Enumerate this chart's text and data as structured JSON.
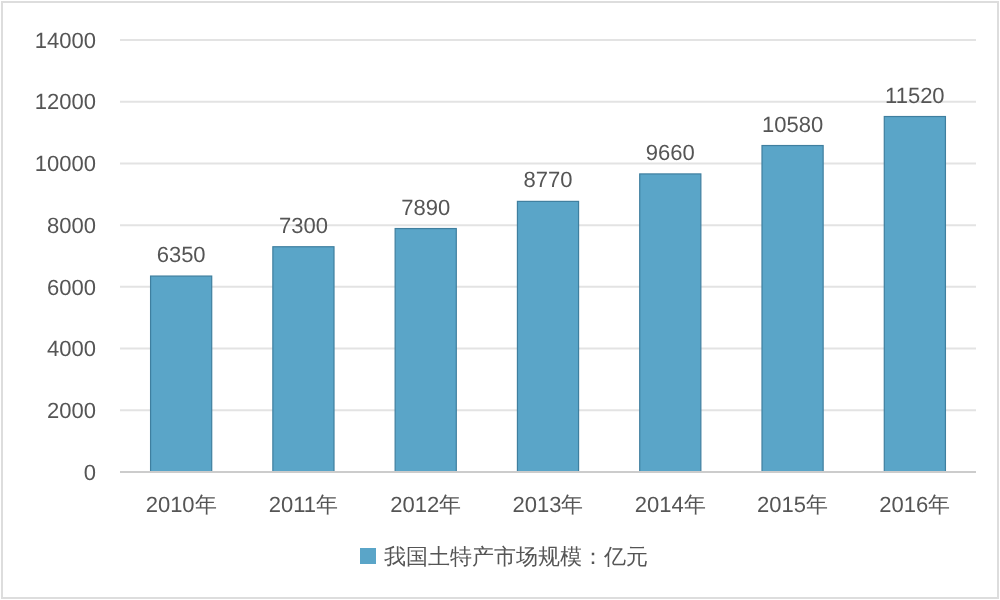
{
  "chart_data": {
    "type": "bar",
    "categories": [
      "2010年",
      "2011年",
      "2012年",
      "2013年",
      "2014年",
      "2015年",
      "2016年"
    ],
    "series": [
      {
        "name": "我国土特产市场规模：亿元",
        "color": "#5aa5c8",
        "values": [
          6350,
          7300,
          7890,
          8770,
          9660,
          10580,
          11520
        ]
      }
    ],
    "ylim": [
      0,
      14000
    ],
    "yticks": [
      0,
      2000,
      4000,
      6000,
      8000,
      10000,
      12000,
      14000
    ],
    "grid": "y",
    "data_labels": true,
    "legend": "bottom"
  }
}
